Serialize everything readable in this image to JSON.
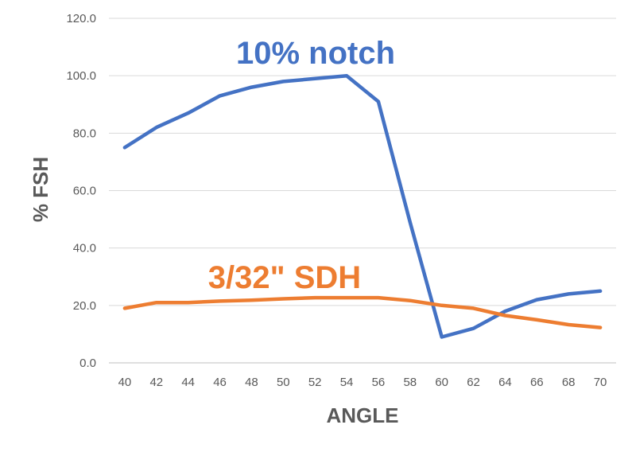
{
  "chart_data": {
    "type": "line",
    "xlabel": "ANGLE",
    "ylabel": "% FSH",
    "ylim": [
      0,
      120
    ],
    "yticks": [
      "0.0",
      "20.0",
      "40.0",
      "60.0",
      "80.0",
      "100.0",
      "120.0"
    ],
    "x": [
      40,
      42,
      44,
      46,
      48,
      50,
      52,
      54,
      56,
      58,
      60,
      62,
      64,
      66,
      68,
      70
    ],
    "grid": true,
    "legend": "none",
    "series": [
      {
        "name": "10% notch",
        "color": "#4472C4",
        "values": [
          75,
          82,
          87,
          93,
          96,
          98,
          99,
          100,
          91,
          49,
          9,
          12,
          18,
          22,
          24,
          25
        ]
      },
      {
        "name": "3/32\" SDH",
        "color": "#ED7D31",
        "values": [
          19,
          21,
          21,
          21.5,
          21.8,
          22.3,
          22.7,
          22.7,
          22.7,
          21.7,
          20,
          19,
          16.5,
          15,
          13.3,
          12.3
        ]
      }
    ]
  }
}
